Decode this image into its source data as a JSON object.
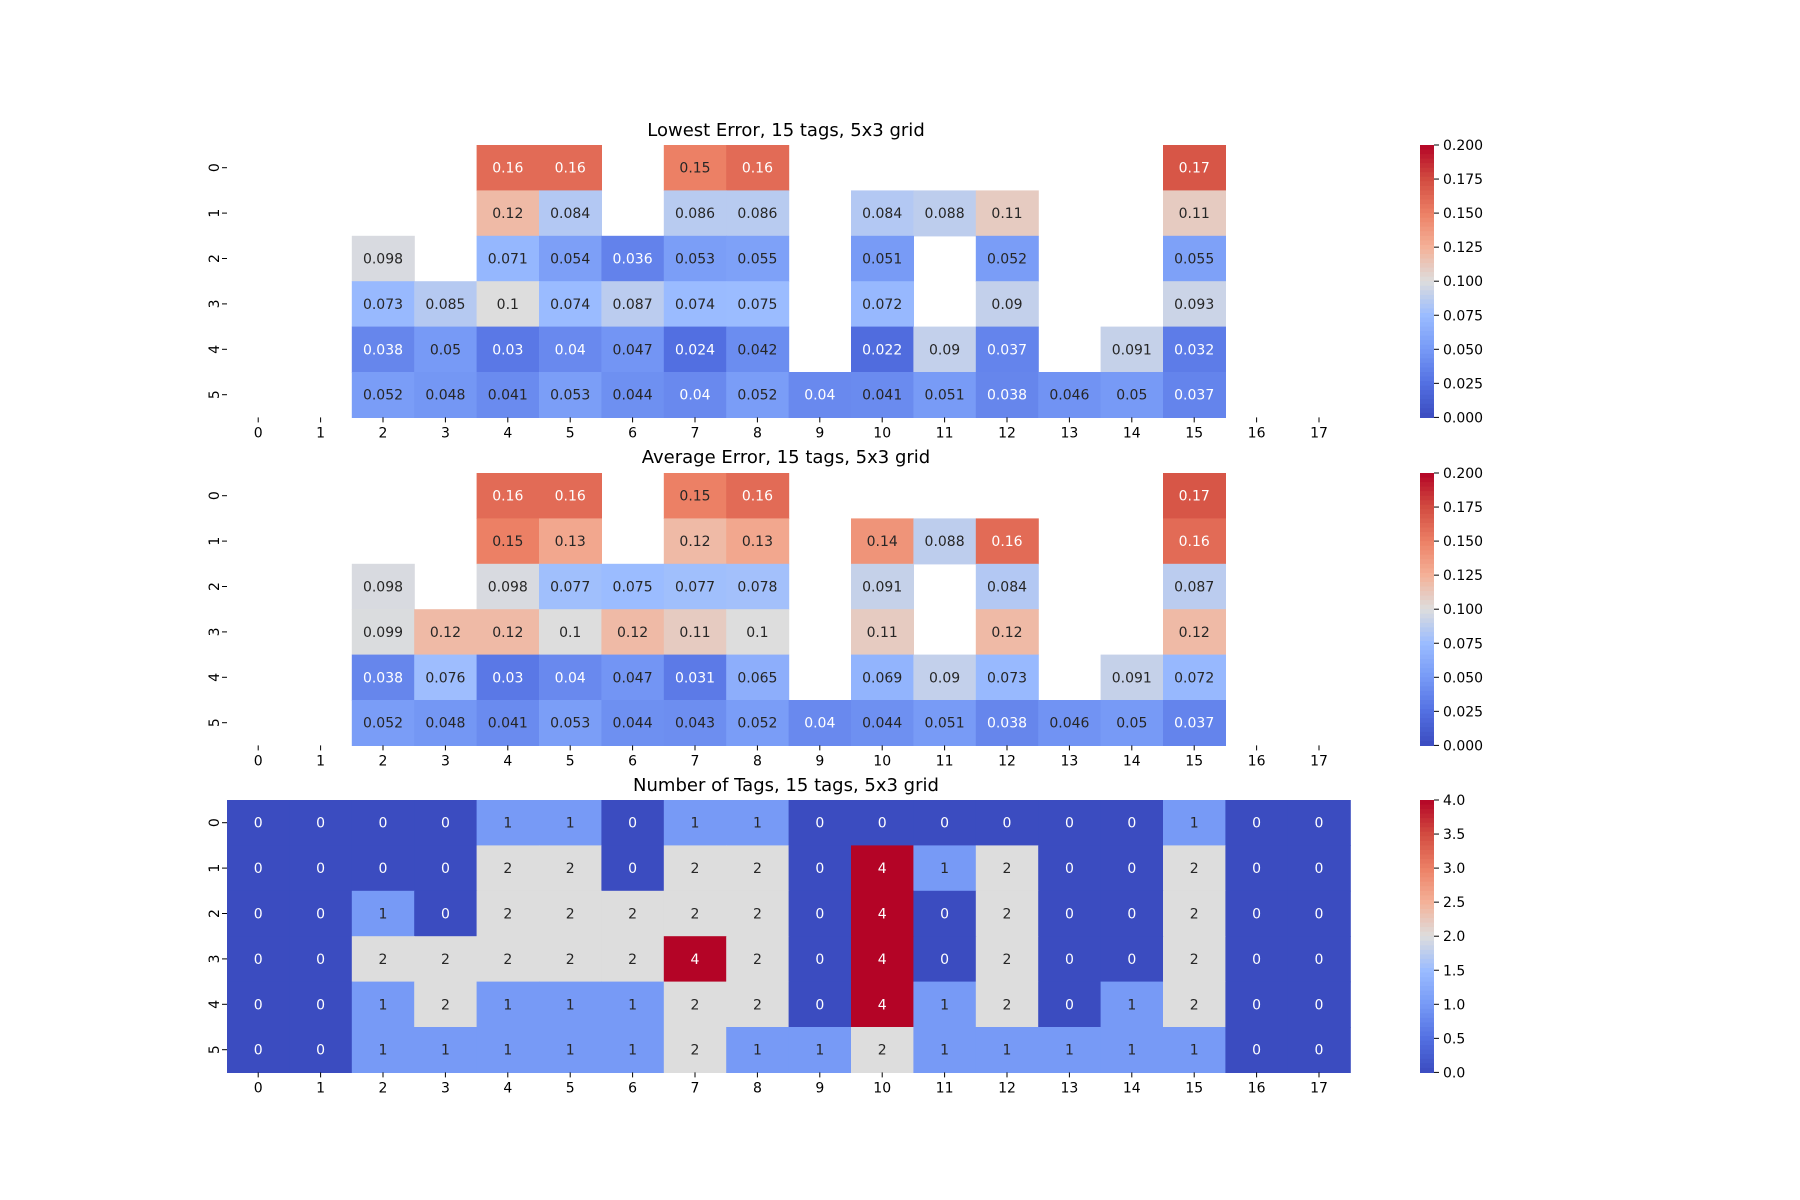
{
  "chart_data": [
    {
      "type": "heatmap",
      "title": "Lowest Error, 15 tags, 5x3 grid",
      "x_categories": [
        "0",
        "1",
        "2",
        "3",
        "4",
        "5",
        "6",
        "7",
        "8",
        "9",
        "10",
        "11",
        "12",
        "13",
        "14",
        "15",
        "16",
        "17"
      ],
      "y_categories": [
        "0",
        "1",
        "2",
        "3",
        "4",
        "5"
      ],
      "values": [
        [
          null,
          null,
          null,
          null,
          0.16,
          0.16,
          null,
          0.15,
          0.16,
          null,
          null,
          null,
          null,
          null,
          null,
          0.17,
          null,
          null
        ],
        [
          null,
          null,
          null,
          null,
          0.12,
          0.084,
          null,
          0.086,
          0.086,
          null,
          0.084,
          0.088,
          0.11,
          null,
          null,
          0.11,
          null,
          null
        ],
        [
          null,
          null,
          0.098,
          null,
          0.071,
          0.054,
          0.036,
          0.053,
          0.055,
          null,
          0.051,
          null,
          0.052,
          null,
          null,
          0.055,
          null,
          null
        ],
        [
          null,
          null,
          0.073,
          0.085,
          0.1,
          0.074,
          0.087,
          0.074,
          0.075,
          null,
          0.072,
          null,
          0.09,
          null,
          null,
          0.093,
          null,
          null
        ],
        [
          null,
          null,
          0.038,
          0.05,
          0.03,
          0.04,
          0.047,
          0.024,
          0.042,
          null,
          0.022,
          0.09,
          0.037,
          null,
          0.091,
          0.032,
          null,
          null
        ],
        [
          null,
          null,
          0.052,
          0.048,
          0.041,
          0.053,
          0.044,
          0.04,
          0.052,
          0.04,
          0.041,
          0.051,
          0.038,
          0.046,
          0.05,
          0.037,
          null,
          null
        ]
      ],
      "vmin": 0,
      "vmax": 0.2,
      "colorbar_ticks": [
        "0.000",
        "0.025",
        "0.050",
        "0.075",
        "0.100",
        "0.125",
        "0.150",
        "0.175",
        "0.200"
      ],
      "colormap": "coolwarm",
      "annotated": true
    },
    {
      "type": "heatmap",
      "title": "Average Error, 15 tags, 5x3 grid",
      "x_categories": [
        "0",
        "1",
        "2",
        "3",
        "4",
        "5",
        "6",
        "7",
        "8",
        "9",
        "10",
        "11",
        "12",
        "13",
        "14",
        "15",
        "16",
        "17"
      ],
      "y_categories": [
        "0",
        "1",
        "2",
        "3",
        "4",
        "5"
      ],
      "values": [
        [
          null,
          null,
          null,
          null,
          0.16,
          0.16,
          null,
          0.15,
          0.16,
          null,
          null,
          null,
          null,
          null,
          null,
          0.17,
          null,
          null
        ],
        [
          null,
          null,
          null,
          null,
          0.15,
          0.13,
          null,
          0.12,
          0.13,
          null,
          0.14,
          0.088,
          0.16,
          null,
          null,
          0.16,
          null,
          null
        ],
        [
          null,
          null,
          0.098,
          null,
          0.098,
          0.077,
          0.075,
          0.077,
          0.078,
          null,
          0.091,
          null,
          0.084,
          null,
          null,
          0.087,
          null,
          null
        ],
        [
          null,
          null,
          0.099,
          0.12,
          0.12,
          0.1,
          0.12,
          0.11,
          0.1,
          null,
          0.11,
          null,
          0.12,
          null,
          null,
          0.12,
          null,
          null
        ],
        [
          null,
          null,
          0.038,
          0.076,
          0.03,
          0.04,
          0.047,
          0.031,
          0.065,
          null,
          0.069,
          0.09,
          0.073,
          null,
          0.091,
          0.072,
          null,
          null
        ],
        [
          null,
          null,
          0.052,
          0.048,
          0.041,
          0.053,
          0.044,
          0.043,
          0.052,
          0.04,
          0.044,
          0.051,
          0.038,
          0.046,
          0.05,
          0.037,
          null,
          null
        ]
      ],
      "vmin": 0,
      "vmax": 0.2,
      "colorbar_ticks": [
        "0.000",
        "0.025",
        "0.050",
        "0.075",
        "0.100",
        "0.125",
        "0.150",
        "0.175",
        "0.200"
      ],
      "colormap": "coolwarm",
      "annotated": true
    },
    {
      "type": "heatmap",
      "title": "Number of Tags, 15 tags, 5x3 grid",
      "x_categories": [
        "0",
        "1",
        "2",
        "3",
        "4",
        "5",
        "6",
        "7",
        "8",
        "9",
        "10",
        "11",
        "12",
        "13",
        "14",
        "15",
        "16",
        "17"
      ],
      "y_categories": [
        "0",
        "1",
        "2",
        "3",
        "4",
        "5"
      ],
      "values": [
        [
          0,
          0,
          0,
          0,
          1,
          1,
          0,
          1,
          1,
          0,
          0,
          0,
          0,
          0,
          0,
          1,
          0,
          0
        ],
        [
          0,
          0,
          0,
          0,
          2,
          2,
          0,
          2,
          2,
          0,
          4,
          1,
          2,
          0,
          0,
          2,
          0,
          0
        ],
        [
          0,
          0,
          1,
          0,
          2,
          2,
          2,
          2,
          2,
          0,
          4,
          0,
          2,
          0,
          0,
          2,
          0,
          0
        ],
        [
          0,
          0,
          2,
          2,
          2,
          2,
          2,
          4,
          2,
          0,
          4,
          0,
          2,
          0,
          0,
          2,
          0,
          0
        ],
        [
          0,
          0,
          1,
          2,
          1,
          1,
          1,
          2,
          2,
          0,
          4,
          1,
          2,
          0,
          1,
          2,
          0,
          0
        ],
        [
          0,
          0,
          1,
          1,
          1,
          1,
          1,
          2,
          1,
          1,
          2,
          1,
          1,
          1,
          1,
          1,
          0,
          0
        ]
      ],
      "vmin": 0,
      "vmax": 4,
      "colorbar_ticks": [
        "0.0",
        "0.5",
        "1.0",
        "1.5",
        "2.0",
        "2.5",
        "3.0",
        "3.5",
        "4.0"
      ],
      "colormap": "coolwarm",
      "annotated": true
    }
  ]
}
